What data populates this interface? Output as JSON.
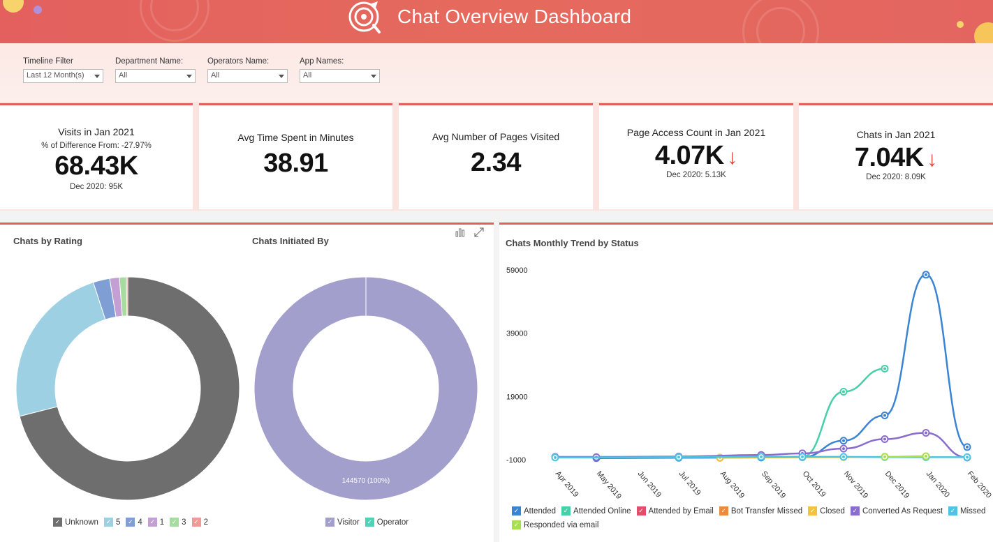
{
  "header": {
    "title": "Chat Overview Dashboard"
  },
  "filters": [
    {
      "label": "Timeline Filter",
      "value": "Last 12 Month(s)"
    },
    {
      "label": "Department Name:",
      "value": "All"
    },
    {
      "label": "Operators Name:",
      "value": "All"
    },
    {
      "label": "App Names:",
      "value": "All"
    }
  ],
  "kpis": {
    "visits": {
      "title": "Visits in Jan 2021",
      "diff": "% of Difference From: -27.97%",
      "value": "68.43K",
      "prev": "Dec 2020: 95K"
    },
    "avg_time": {
      "title": "Avg Time Spent in Minutes",
      "value": "38.91"
    },
    "avg_pages": {
      "title": "Avg Number of Pages Visited",
      "value": "2.34"
    },
    "page_access": {
      "title": "Page Access Count in Jan 2021",
      "value": "4.07K",
      "arrow": "↓",
      "prev": "Dec 2020: 5.13K"
    },
    "chats": {
      "title": "Chats in Jan 2021",
      "value": "7.04K",
      "arrow": "↓",
      "prev": "Dec 2020: 8.09K"
    }
  },
  "chart_data": [
    {
      "type": "pie",
      "title": "Chats by Rating",
      "categories": [
        "Unknown",
        "5",
        "4",
        "1",
        "3",
        "2"
      ],
      "values": [
        71.0,
        24.0,
        2.4,
        1.4,
        1.0,
        0.2
      ],
      "colors": [
        "#6e6e6e",
        "#9ed0e3",
        "#7f9fd4",
        "#c39fd3",
        "#a7dca0",
        "#ee9a96"
      ]
    },
    {
      "type": "pie",
      "title": "Chats Initiated By",
      "categories": [
        "Visitor",
        "Operator"
      ],
      "values": [
        144570,
        0
      ],
      "colors": [
        "#a39fcc",
        "#4fd3b6"
      ],
      "data_label": "144570 (100%)"
    },
    {
      "type": "line",
      "title": "Chats Monthly Trend by Status",
      "x": [
        "Apr 2019",
        "May 2019",
        "Jun 2019",
        "Jul 2019",
        "Aug 2019",
        "Sep 2019",
        "Oct 2019",
        "Nov 2019",
        "Dec 2019",
        "Jan 2020",
        "Feb 2020"
      ],
      "ylim": [
        -1000,
        59000
      ],
      "yticks": [
        "59000",
        "39000",
        "19000",
        "-1000"
      ],
      "series": [
        {
          "name": "Attended",
          "color": "#3a84d4",
          "values": [
            null,
            -500,
            null,
            -400,
            null,
            -300,
            -200,
            5000,
            13000,
            57500,
            3000
          ]
        },
        {
          "name": "Attended Online",
          "color": "#46cfa9",
          "values": [
            -100,
            null,
            null,
            null,
            null,
            null,
            -100,
            20500,
            27800,
            null,
            null
          ]
        },
        {
          "name": "Attended by Email",
          "color": "#e0506a",
          "values": [
            null,
            null,
            null,
            null,
            null,
            null,
            null,
            null,
            null,
            null,
            null
          ]
        },
        {
          "name": "Bot Transfer Missed",
          "color": "#f0893a",
          "values": [
            null,
            null,
            null,
            null,
            -400,
            null,
            null,
            null,
            null,
            null,
            null
          ]
        },
        {
          "name": "Closed",
          "color": "#f2c43d",
          "values": [
            null,
            null,
            null,
            null,
            -300,
            null,
            null,
            -200,
            -100,
            0,
            null
          ]
        },
        {
          "name": "Converted As Request",
          "color": "#8a6ccf",
          "values": [
            -200,
            -200,
            null,
            0,
            null,
            500,
            1000,
            2500,
            5500,
            7500,
            -300
          ]
        },
        {
          "name": "Missed",
          "color": "#4fc4e0",
          "values": [
            -300,
            null,
            null,
            -200,
            null,
            -100,
            -100,
            -100,
            -200,
            -200,
            -200
          ]
        },
        {
          "name": "Responded via email",
          "color": "#a7e04e",
          "values": [
            null,
            null,
            null,
            null,
            null,
            null,
            null,
            null,
            -100,
            100,
            null
          ]
        }
      ]
    }
  ],
  "icons": {
    "bar_chart": "bar-chart-icon",
    "expand": "expand-icon",
    "logo": "chat-target-logo-icon"
  }
}
